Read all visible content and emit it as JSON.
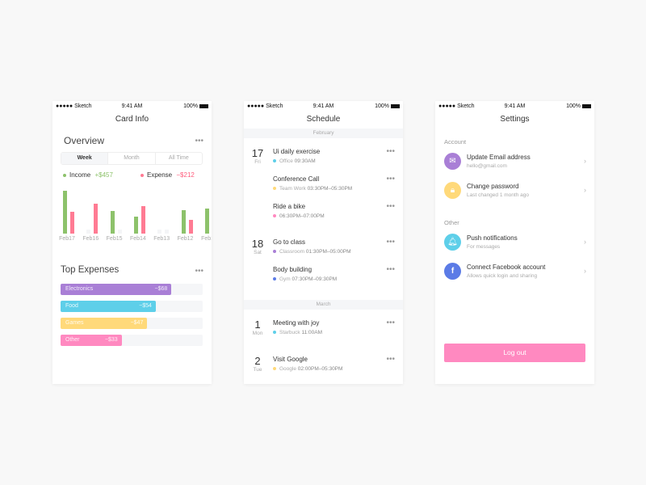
{
  "card_info": {
    "status": {
      "carrier": "●●●●● Sketch",
      "time": "9:41 AM",
      "battery": "100%"
    },
    "title": "Card Info",
    "overview_title": "Overview",
    "more": "•••",
    "tabs": [
      "Week",
      "Month",
      "All Time"
    ],
    "income_label": "Income",
    "income_value": "+$457",
    "expense_label": "Expense",
    "expense_value": "−$212",
    "top_expenses_title": "Top Expenses",
    "expenses": [
      {
        "label": "Electronics",
        "value": "−$68",
        "percent": 78,
        "color": "#a97fd6"
      },
      {
        "label": "Food",
        "value": "−$54",
        "percent": 67,
        "color": "#5ecfe9"
      },
      {
        "label": "Games",
        "value": "−$47",
        "percent": 61,
        "color": "#ffd97a"
      },
      {
        "label": "Other",
        "value": "−$33",
        "percent": 43,
        "color": "#ff89c0"
      }
    ]
  },
  "chart_data": {
    "type": "bar",
    "categories": [
      "Feb17",
      "Feb16",
      "Feb15",
      "Feb14",
      "Feb13",
      "Feb12",
      "Feb11"
    ],
    "series": [
      {
        "name": "Income",
        "color": "#8dc26b",
        "values": [
          53,
          0,
          28,
          21,
          0,
          29,
          31
        ]
      },
      {
        "name": "Expense",
        "color": "#ff7b93",
        "values": [
          27,
          37,
          0,
          34,
          0,
          17,
          0
        ]
      }
    ],
    "ylim": [
      0,
      60
    ]
  },
  "schedule": {
    "status": {
      "carrier": "●●●●● Sketch",
      "time": "9:41 AM",
      "battery": "100%"
    },
    "title": "Schedule",
    "more": "•••",
    "months": [
      {
        "name": "February",
        "days": [
          {
            "num": "17",
            "weekday": "Fri",
            "events": [
              {
                "title": "Ui daily exercise",
                "place": "Office",
                "time": "09:30AM",
                "color": "#5ecfe9"
              },
              {
                "title": "Conference Call",
                "place": "Team Work",
                "time": "03:30PM–05:30PM",
                "color": "#ffd97a"
              },
              {
                "title": "Ride a bike",
                "place": "",
                "time": "06:30PM–07:00PM",
                "color": "#ff89c0"
              }
            ]
          },
          {
            "num": "18",
            "weekday": "Sat",
            "events": [
              {
                "title": "Go to class",
                "place": "Classroom",
                "time": "01:30PM–05:00PM",
                "color": "#a97fd6"
              },
              {
                "title": "Body building",
                "place": "Gym",
                "time": "07:30PM–09:30PM",
                "color": "#5b7be6"
              }
            ]
          }
        ]
      },
      {
        "name": "March",
        "days": [
          {
            "num": "1",
            "weekday": "Mon",
            "events": [
              {
                "title": "Meeting with joy",
                "place": "Starbuck",
                "time": "11:00AM",
                "color": "#5ecfe9"
              }
            ]
          },
          {
            "num": "2",
            "weekday": "Tue",
            "events": [
              {
                "title": "Visit Google",
                "place": "Google",
                "time": "02:00PM–05:30PM",
                "color": "#ffd97a"
              }
            ]
          }
        ]
      }
    ]
  },
  "settings": {
    "status": {
      "carrier": "●●●●● Sketch",
      "time": "9:41 AM",
      "battery": "100%"
    },
    "title": "Settings",
    "account_label": "Account",
    "other_label": "Other",
    "items": [
      {
        "title": "Update Email address",
        "subtitle": "hello@gmail.com",
        "icon": "mail-icon",
        "glyph": "✉",
        "color": "#a97fd6"
      },
      {
        "title": "Change password",
        "subtitle": "Last changed 1 month ago",
        "icon": "lock-icon",
        "glyph": "🔒︎",
        "color": "#ffd97a"
      },
      {
        "title": "Push notifications",
        "subtitle": "For messages",
        "icon": "bell-icon",
        "glyph": "🔔︎",
        "color": "#5ecfe9"
      },
      {
        "title": "Connect Facebook account",
        "subtitle": "Allows quick login and sharing",
        "icon": "facebook-icon",
        "glyph": "f",
        "color": "#5b7be6"
      }
    ],
    "chevron": "›",
    "logout": "Log out"
  }
}
